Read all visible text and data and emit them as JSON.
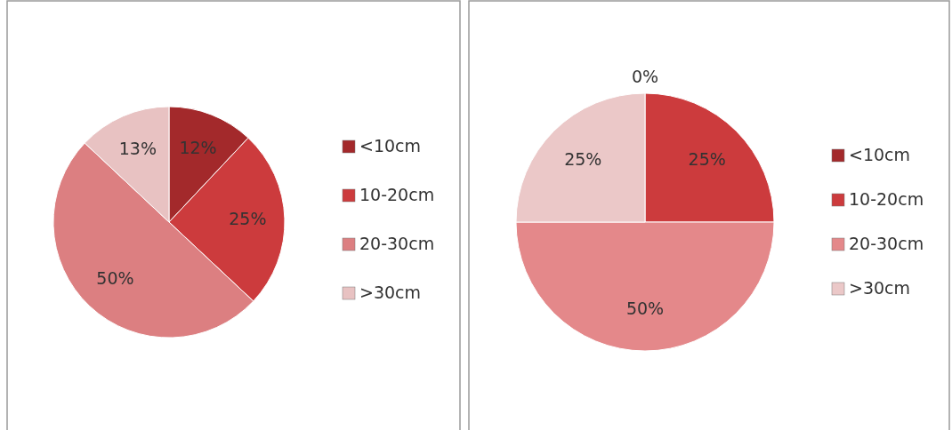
{
  "chart_data": [
    {
      "type": "pie",
      "categories": [
        "<10cm",
        "10-20cm",
        "20-30cm",
        ">30cm"
      ],
      "values": [
        12,
        25,
        50,
        13
      ],
      "value_labels": [
        "12%",
        "25%",
        "50%",
        "13%"
      ],
      "colors": [
        "#a3292b",
        "#cc3b3d",
        "#dc7f81",
        "#e8c2c2"
      ],
      "legend": "right"
    },
    {
      "type": "pie",
      "categories": [
        "<10cm",
        "10-20cm",
        "20-30cm",
        ">30cm"
      ],
      "values": [
        0,
        25,
        50,
        25
      ],
      "value_labels": [
        "0%",
        "25%",
        "50%",
        "25%"
      ],
      "colors": [
        "#a3292b",
        "#cc3b3d",
        "#e4888a",
        "#ebc8c8"
      ],
      "legend": "right"
    }
  ]
}
